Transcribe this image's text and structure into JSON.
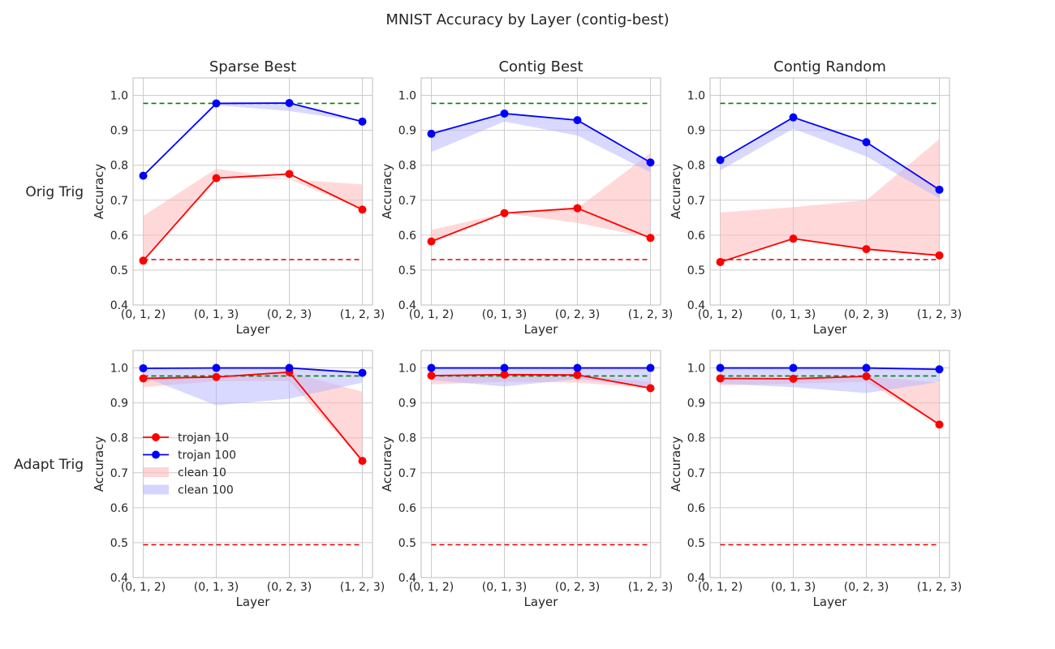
{
  "figure": {
    "suptitle": "MNIST Accuracy by Layer (contig-best)",
    "column_titles": [
      "Sparse Best",
      "Contig Best",
      "Contig Random"
    ],
    "row_labels": [
      "Orig Trig",
      "Adapt Trig"
    ]
  },
  "colors": {
    "trojan_10": "#ff0000",
    "trojan_100": "#0000ff",
    "clean_10_band": "#ffb3b3",
    "clean_100_band": "#b3b3ff",
    "ref_green": "#008000",
    "ref_red": "#e00000",
    "grid": "#cccccc",
    "axes_edge": "#bdbdbd"
  },
  "legend": {
    "placement": "center-left",
    "panel": "row 2, column 1",
    "entries": [
      "trojan 10",
      "trojan 100",
      "clean 10",
      "clean 100"
    ]
  },
  "chart_data": [
    {
      "type": "line",
      "title": "Sparse Best",
      "row_label": "Orig Trig",
      "xlabel": "Layer",
      "ylabel": "Accuracy",
      "categories": [
        "(0, 1, 2)",
        "(0, 1, 3)",
        "(0, 2, 3)",
        "(1, 2, 3)"
      ],
      "ylim": [
        0.4,
        1.05
      ],
      "yticks": [
        "0.4",
        "0.5",
        "0.6",
        "0.7",
        "0.8",
        "0.9",
        "1.0"
      ],
      "grid": true,
      "series": [
        {
          "name": "trojan 10",
          "values": [
            0.527,
            0.763,
            0.775,
            0.673
          ]
        },
        {
          "name": "trojan 100",
          "values": [
            0.77,
            0.977,
            0.978,
            0.925
          ]
        }
      ],
      "bands": [
        {
          "name": "clean 10",
          "lower": [
            0.527,
            0.763,
            0.76,
            0.673
          ],
          "upper": [
            0.655,
            0.79,
            0.76,
            0.745
          ]
        },
        {
          "name": "clean 100",
          "lower": [
            0.77,
            0.972,
            0.955,
            0.925
          ],
          "upper": [
            0.77,
            0.977,
            0.978,
            0.925
          ]
        }
      ],
      "reference_lines": [
        0.977,
        0.53
      ]
    },
    {
      "type": "line",
      "title": "Contig Best",
      "row_label": "Orig Trig",
      "xlabel": "Layer",
      "ylabel": "Accuracy",
      "categories": [
        "(0, 1, 2)",
        "(0, 1, 3)",
        "(0, 2, 3)",
        "(1, 2, 3)"
      ],
      "ylim": [
        0.4,
        1.05
      ],
      "yticks": [
        "0.4",
        "0.5",
        "0.6",
        "0.7",
        "0.8",
        "0.9",
        "1.0"
      ],
      "grid": true,
      "series": [
        {
          "name": "trojan 10",
          "values": [
            0.582,
            0.663,
            0.677,
            0.592
          ]
        },
        {
          "name": "trojan 100",
          "values": [
            0.89,
            0.948,
            0.929,
            0.808
          ]
        }
      ],
      "bands": [
        {
          "name": "clean 10",
          "lower": [
            0.582,
            0.663,
            0.635,
            0.592
          ],
          "upper": [
            0.615,
            0.663,
            0.677,
            0.835
          ]
        },
        {
          "name": "clean 100",
          "lower": [
            0.838,
            0.925,
            0.885,
            0.78
          ],
          "upper": [
            0.89,
            0.948,
            0.929,
            0.808
          ]
        }
      ],
      "reference_lines": [
        0.977,
        0.53
      ]
    },
    {
      "type": "line",
      "title": "Contig Random",
      "row_label": "Orig Trig",
      "xlabel": "Layer",
      "ylabel": "Accuracy",
      "categories": [
        "(0, 1, 2)",
        "(0, 1, 3)",
        "(0, 2, 3)",
        "(1, 2, 3)"
      ],
      "ylim": [
        0.4,
        1.05
      ],
      "yticks": [
        "0.4",
        "0.5",
        "0.6",
        "0.7",
        "0.8",
        "0.9",
        "1.0"
      ],
      "grid": true,
      "series": [
        {
          "name": "trojan 10",
          "values": [
            0.523,
            0.59,
            0.56,
            0.542
          ]
        },
        {
          "name": "trojan 100",
          "values": [
            0.815,
            0.937,
            0.866,
            0.73
          ]
        }
      ],
      "bands": [
        {
          "name": "clean 10",
          "lower": [
            0.523,
            0.59,
            0.56,
            0.542
          ],
          "upper": [
            0.665,
            0.68,
            0.7,
            0.875
          ]
        },
        {
          "name": "clean 100",
          "lower": [
            0.785,
            0.905,
            0.825,
            0.705
          ],
          "upper": [
            0.815,
            0.937,
            0.866,
            0.73
          ]
        }
      ],
      "reference_lines": [
        0.977,
        0.53
      ]
    },
    {
      "type": "line",
      "title": "",
      "row_label": "Adapt Trig",
      "xlabel": "Layer",
      "ylabel": "Accuracy",
      "categories": [
        "(0, 1, 2)",
        "(0, 1, 3)",
        "(0, 2, 3)",
        "(1, 2, 3)"
      ],
      "ylim": [
        0.4,
        1.05
      ],
      "yticks": [
        "0.4",
        "0.5",
        "0.6",
        "0.7",
        "0.8",
        "0.9",
        "1.0"
      ],
      "grid": true,
      "series": [
        {
          "name": "trojan 10",
          "values": [
            0.97,
            0.974,
            0.988,
            0.734
          ]
        },
        {
          "name": "trojan 100",
          "values": [
            0.999,
            1.0,
            1.0,
            0.986
          ]
        }
      ],
      "bands": [
        {
          "name": "clean 10",
          "lower": [
            0.945,
            0.962,
            0.962,
            0.734
          ],
          "upper": [
            0.97,
            0.974,
            0.988,
            0.932
          ]
        },
        {
          "name": "clean 100",
          "lower": [
            0.975,
            0.893,
            0.912,
            0.958
          ],
          "upper": [
            0.999,
            1.0,
            1.0,
            0.986
          ]
        }
      ],
      "reference_lines": [
        0.977,
        0.494
      ]
    },
    {
      "type": "line",
      "title": "",
      "row_label": "Adapt Trig",
      "xlabel": "Layer",
      "ylabel": "Accuracy",
      "categories": [
        "(0, 1, 2)",
        "(0, 1, 3)",
        "(0, 2, 3)",
        "(1, 2, 3)"
      ],
      "ylim": [
        0.4,
        1.05
      ],
      "yticks": [
        "0.4",
        "0.5",
        "0.6",
        "0.7",
        "0.8",
        "0.9",
        "1.0"
      ],
      "grid": true,
      "series": [
        {
          "name": "trojan 10",
          "values": [
            0.978,
            0.981,
            0.98,
            0.942
          ]
        },
        {
          "name": "trojan 100",
          "values": [
            1.0,
            1.0,
            1.0,
            1.0
          ]
        }
      ],
      "bands": [
        {
          "name": "clean 10",
          "lower": [
            0.953,
            0.96,
            0.958,
            0.942
          ],
          "upper": [
            0.978,
            0.981,
            0.98,
            0.96
          ]
        },
        {
          "name": "clean 100",
          "lower": [
            0.965,
            0.947,
            0.968,
            0.945
          ],
          "upper": [
            1.0,
            1.0,
            1.0,
            1.0
          ]
        }
      ],
      "reference_lines": [
        0.977,
        0.494
      ]
    },
    {
      "type": "line",
      "title": "",
      "row_label": "Adapt Trig",
      "xlabel": "Layer",
      "ylabel": "Accuracy",
      "categories": [
        "(0, 1, 2)",
        "(0, 1, 3)",
        "(0, 2, 3)",
        "(1, 2, 3)"
      ],
      "ylim": [
        0.4,
        1.05
      ],
      "yticks": [
        "0.4",
        "0.5",
        "0.6",
        "0.7",
        "0.8",
        "0.9",
        "1.0"
      ],
      "grid": true,
      "series": [
        {
          "name": "trojan 10",
          "values": [
            0.97,
            0.969,
            0.976,
            0.838
          ]
        },
        {
          "name": "trojan 100",
          "values": [
            1.0,
            1.0,
            1.0,
            0.996
          ]
        }
      ],
      "bands": [
        {
          "name": "clean 10",
          "lower": [
            0.95,
            0.955,
            0.96,
            0.838
          ],
          "upper": [
            0.97,
            0.969,
            0.976,
            0.958
          ]
        },
        {
          "name": "clean 100",
          "lower": [
            0.955,
            0.945,
            0.928,
            0.96
          ],
          "upper": [
            1.0,
            1.0,
            1.0,
            0.996
          ]
        }
      ],
      "reference_lines": [
        0.977,
        0.494
      ]
    }
  ]
}
